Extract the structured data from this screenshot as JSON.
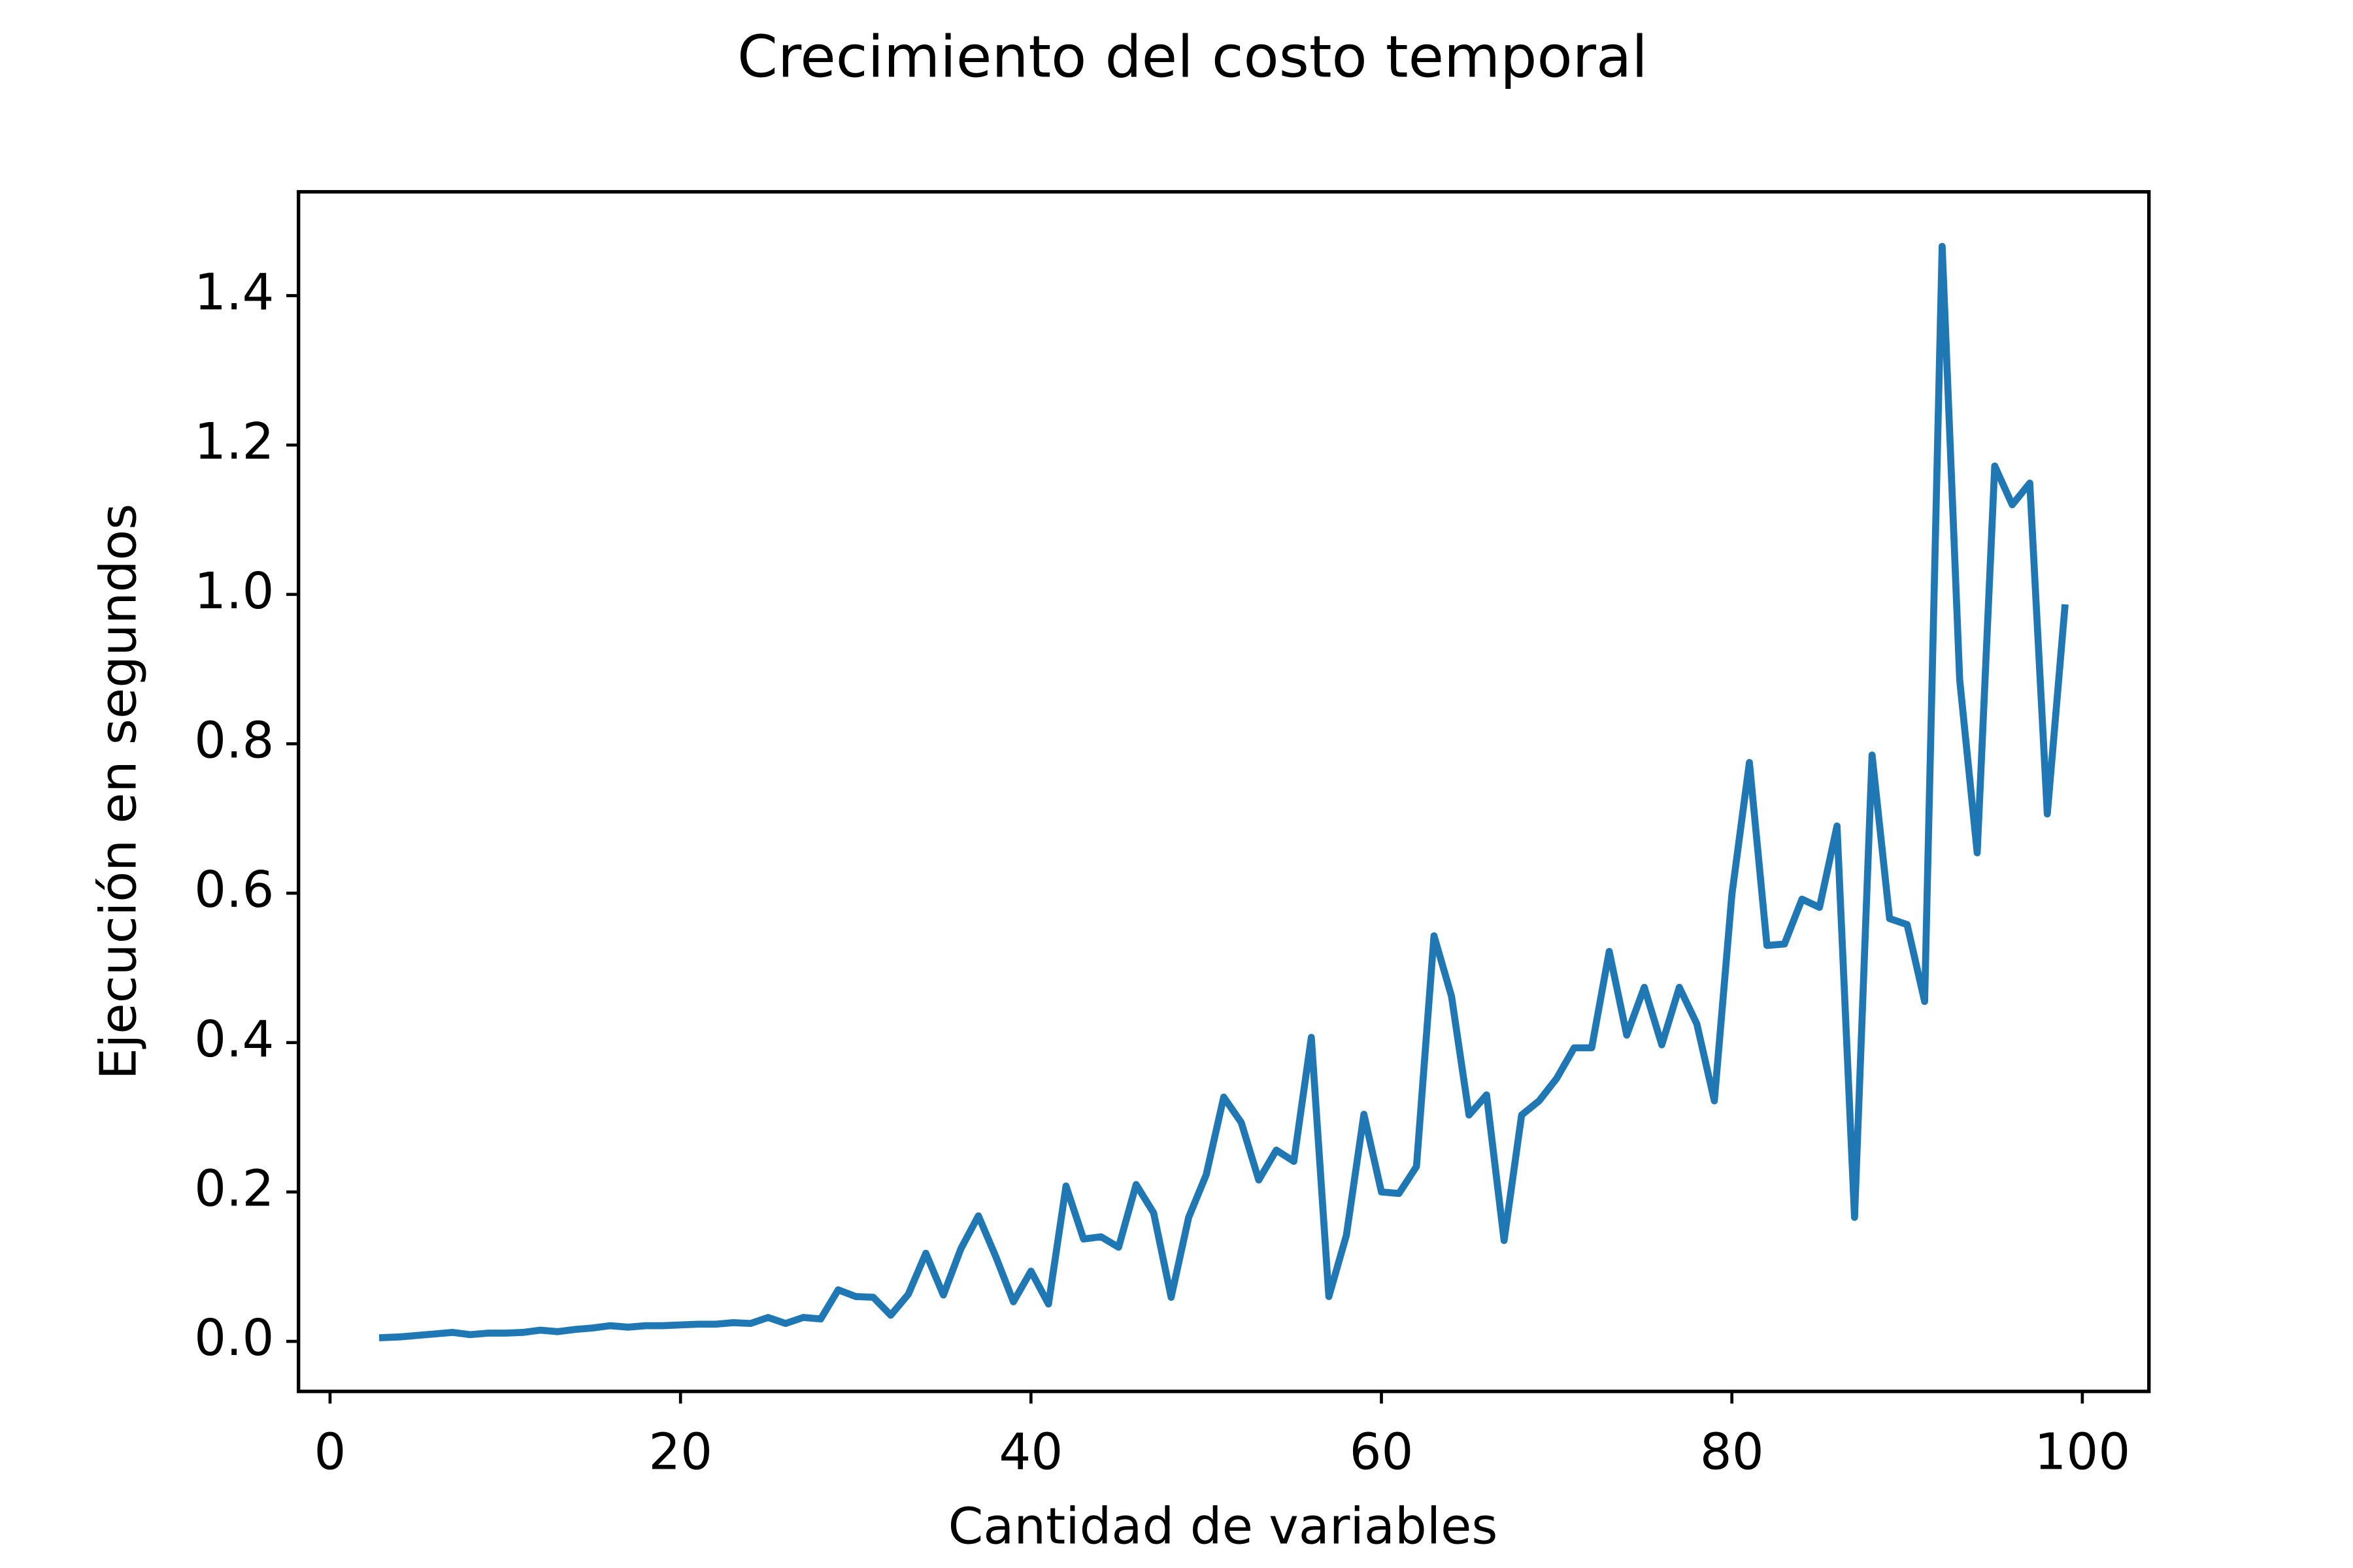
{
  "chart_data": {
    "type": "line",
    "title": "Crecimiento del costo temporal",
    "x_label": "Cantidad de variables",
    "y_label": "Ejecución en segundos",
    "x": [
      3,
      4,
      5,
      6,
      7,
      8,
      9,
      10,
      11,
      12,
      13,
      14,
      15,
      16,
      17,
      18,
      19,
      20,
      21,
      22,
      23,
      24,
      25,
      26,
      27,
      28,
      29,
      30,
      31,
      32,
      33,
      34,
      35,
      36,
      37,
      38,
      39,
      40,
      41,
      42,
      43,
      44,
      45,
      46,
      47,
      48,
      49,
      50,
      51,
      52,
      53,
      54,
      55,
      56,
      57,
      58,
      59,
      60,
      61,
      62,
      63,
      64,
      65,
      66,
      67,
      68,
      69,
      70,
      71,
      72,
      73,
      74,
      75,
      76,
      77,
      78,
      79,
      80,
      81,
      82,
      83,
      84,
      85,
      86,
      87,
      88,
      89,
      90,
      91,
      92,
      93,
      94,
      95,
      96,
      97,
      98,
      99
    ],
    "series": [
      {
        "color": "#1f77b4",
        "values": [
          0.005,
          0.006,
          0.008,
          0.01,
          0.012,
          0.009,
          0.011,
          0.011,
          0.012,
          0.015,
          0.013,
          0.016,
          0.018,
          0.021,
          0.019,
          0.021,
          0.021,
          0.022,
          0.023,
          0.023,
          0.025,
          0.024,
          0.032,
          0.024,
          0.032,
          0.03,
          0.069,
          0.06,
          0.059,
          0.035,
          0.063,
          0.118,
          0.062,
          0.124,
          0.168,
          0.113,
          0.053,
          0.094,
          0.05,
          0.208,
          0.137,
          0.14,
          0.126,
          0.21,
          0.172,
          0.059,
          0.166,
          0.223,
          0.327,
          0.293,
          0.216,
          0.256,
          0.241,
          0.407,
          0.06,
          0.142,
          0.304,
          0.2,
          0.198,
          0.234,
          0.543,
          0.462,
          0.303,
          0.33,
          0.135,
          0.303,
          0.322,
          0.352,
          0.393,
          0.393,
          0.522,
          0.41,
          0.474,
          0.397,
          0.474,
          0.425,
          0.322,
          0.598,
          0.775,
          0.53,
          0.532,
          0.592,
          0.581,
          0.69,
          0.166,
          0.785,
          0.566,
          0.558,
          0.455,
          1.466,
          0.886,
          0.654,
          1.172,
          1.12,
          1.149,
          0.706,
          0.982
        ]
      }
    ],
    "xlim": [
      -1.8,
      103.8
    ],
    "ylim": [
      -0.067,
      1.539
    ],
    "xticks": [
      0,
      20,
      40,
      60,
      80,
      100
    ],
    "yticks": [
      {
        "value": 0,
        "label": "0.0"
      },
      {
        "value": 0.2,
        "label": "0.2"
      },
      {
        "value": 0.4,
        "label": "0.4"
      },
      {
        "value": 0.6,
        "label": "0.6"
      },
      {
        "value": 0.8,
        "label": "0.8"
      },
      {
        "value": 1.0,
        "label": "1.0"
      },
      {
        "value": 1.2,
        "label": "1.2"
      },
      {
        "value": 1.4,
        "label": "1.4"
      }
    ]
  }
}
